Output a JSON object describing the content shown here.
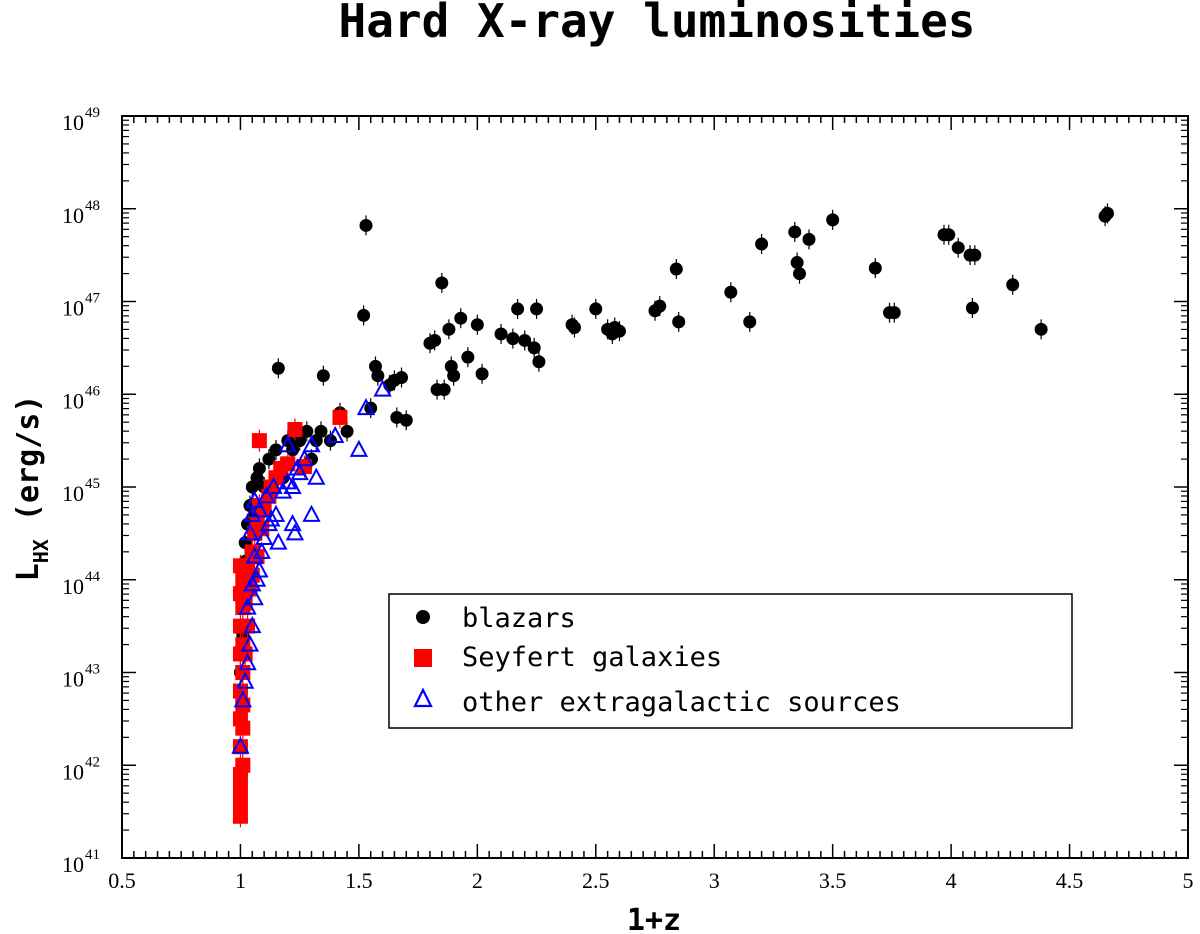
{
  "chart_data": {
    "type": "scatter",
    "title": "Hard X-ray luminosities",
    "xlabel": "1+z",
    "ylabel_main": "L",
    "ylabel_sub": "HX",
    "ylabel_unit": "(erg/s)",
    "xlim": [
      0.5,
      5
    ],
    "ylim": [
      41,
      49
    ],
    "y_scale": "log",
    "x_ticks": [
      0.5,
      1,
      1.5,
      2,
      2.5,
      3,
      3.5,
      4,
      4.5,
      5
    ],
    "x_tick_labels": [
      "0.5",
      "1",
      "1.5",
      "2",
      "2.5",
      "3",
      "3.5",
      "4",
      "4.5",
      "5"
    ],
    "y_ticks": [
      41,
      42,
      43,
      44,
      45,
      46,
      47,
      48,
      49
    ],
    "y_tick_base": "10",
    "y_tick_exponents": [
      "41",
      "42",
      "43",
      "44",
      "45",
      "46",
      "47",
      "48",
      "49"
    ],
    "grid": false,
    "legend_position": "lower-right",
    "series": [
      {
        "name": "blazars",
        "marker": "filled-circle",
        "color": "#000000",
        "points": [
          [
            1.0,
            43.0
          ],
          [
            1.01,
            43.4
          ],
          [
            1.01,
            43.8
          ],
          [
            1.02,
            44.2
          ],
          [
            1.02,
            44.4
          ],
          [
            1.03,
            44.6
          ],
          [
            1.04,
            44.8
          ],
          [
            1.05,
            45.0
          ],
          [
            1.06,
            44.7
          ],
          [
            1.07,
            45.1
          ],
          [
            1.08,
            45.2
          ],
          [
            1.1,
            45.0
          ],
          [
            1.12,
            45.3
          ],
          [
            1.15,
            45.4
          ],
          [
            1.16,
            46.28
          ],
          [
            1.18,
            45.1
          ],
          [
            1.2,
            45.5
          ],
          [
            1.22,
            45.4
          ],
          [
            1.25,
            45.5
          ],
          [
            1.28,
            45.6
          ],
          [
            1.3,
            45.3
          ],
          [
            1.32,
            45.5
          ],
          [
            1.34,
            45.6
          ],
          [
            1.35,
            46.2
          ],
          [
            1.38,
            45.5
          ],
          [
            1.42,
            45.8
          ],
          [
            1.45,
            45.6
          ],
          [
            1.52,
            46.85
          ],
          [
            1.53,
            47.82
          ],
          [
            1.55,
            45.85
          ],
          [
            1.57,
            46.3
          ],
          [
            1.58,
            46.2
          ],
          [
            1.63,
            46.1
          ],
          [
            1.65,
            46.15
          ],
          [
            1.66,
            45.75
          ],
          [
            1.68,
            46.18
          ],
          [
            1.7,
            45.72
          ],
          [
            1.8,
            46.55
          ],
          [
            1.82,
            46.58
          ],
          [
            1.83,
            46.05
          ],
          [
            1.85,
            47.2
          ],
          [
            1.86,
            46.05
          ],
          [
            1.88,
            46.7
          ],
          [
            1.89,
            46.3
          ],
          [
            1.9,
            46.2
          ],
          [
            1.93,
            46.82
          ],
          [
            1.96,
            46.4
          ],
          [
            2.0,
            46.75
          ],
          [
            2.02,
            46.22
          ],
          [
            2.1,
            46.65
          ],
          [
            2.15,
            46.6
          ],
          [
            2.17,
            46.92
          ],
          [
            2.2,
            46.58
          ],
          [
            2.24,
            46.5
          ],
          [
            2.25,
            46.92
          ],
          [
            2.26,
            46.35
          ],
          [
            2.4,
            46.75
          ],
          [
            2.41,
            46.72
          ],
          [
            2.5,
            46.92
          ],
          [
            2.55,
            46.7
          ],
          [
            2.57,
            46.65
          ],
          [
            2.58,
            46.72
          ],
          [
            2.6,
            46.68
          ],
          [
            2.75,
            46.9
          ],
          [
            2.77,
            46.95
          ],
          [
            2.84,
            47.35
          ],
          [
            2.85,
            46.78
          ],
          [
            3.07,
            47.1
          ],
          [
            3.15,
            46.78
          ],
          [
            3.2,
            47.62
          ],
          [
            3.34,
            47.75
          ],
          [
            3.35,
            47.42
          ],
          [
            3.36,
            47.3
          ],
          [
            3.4,
            47.67
          ],
          [
            3.5,
            47.88
          ],
          [
            3.68,
            47.36
          ],
          [
            3.74,
            46.88
          ],
          [
            3.76,
            46.88
          ],
          [
            3.97,
            47.72
          ],
          [
            3.99,
            47.72
          ],
          [
            4.03,
            47.58
          ],
          [
            4.08,
            47.5
          ],
          [
            4.1,
            47.5
          ],
          [
            4.09,
            46.93
          ],
          [
            4.26,
            47.18
          ],
          [
            4.38,
            46.7
          ],
          [
            4.65,
            47.92
          ],
          [
            4.66,
            47.95
          ]
        ]
      },
      {
        "name": "Seyfert galaxies",
        "marker": "filled-square",
        "color": "#ff0000",
        "points": [
          [
            1.0,
            41.45
          ],
          [
            1.0,
            41.6
          ],
          [
            1.0,
            41.75
          ],
          [
            1.0,
            41.9
          ],
          [
            1.01,
            42.0
          ],
          [
            1.0,
            42.2
          ],
          [
            1.01,
            42.4
          ],
          [
            1.0,
            42.5
          ],
          [
            1.01,
            42.65
          ],
          [
            1.0,
            42.8
          ],
          [
            1.01,
            43.0
          ],
          [
            1.0,
            43.2
          ],
          [
            1.01,
            43.3
          ],
          [
            1.0,
            43.5
          ],
          [
            1.01,
            43.7
          ],
          [
            1.0,
            43.85
          ],
          [
            1.01,
            44.0
          ],
          [
            1.0,
            44.15
          ],
          [
            1.02,
            43.2
          ],
          [
            1.03,
            43.5
          ],
          [
            1.02,
            43.75
          ],
          [
            1.04,
            43.9
          ],
          [
            1.03,
            44.1
          ],
          [
            1.05,
            44.3
          ],
          [
            1.06,
            44.5
          ],
          [
            1.07,
            44.6
          ],
          [
            1.08,
            44.8
          ],
          [
            1.09,
            44.55
          ],
          [
            1.1,
            44.75
          ],
          [
            1.12,
            44.9
          ],
          [
            1.13,
            45.0
          ],
          [
            1.15,
            45.1
          ],
          [
            1.17,
            45.2
          ],
          [
            1.2,
            45.25
          ],
          [
            1.08,
            45.5
          ],
          [
            1.23,
            45.62
          ],
          [
            1.27,
            45.22
          ],
          [
            1.42,
            45.75
          ],
          [
            1.05,
            44.05
          ],
          [
            1.07,
            44.25
          ]
        ]
      },
      {
        "name": "other extragalactic sources",
        "marker": "open-triangle",
        "color": "#0000ff",
        "points": [
          [
            1.0,
            42.2
          ],
          [
            1.01,
            42.7
          ],
          [
            1.02,
            42.9
          ],
          [
            1.03,
            43.1
          ],
          [
            1.04,
            43.3
          ],
          [
            1.05,
            43.5
          ],
          [
            1.03,
            43.7
          ],
          [
            1.06,
            43.8
          ],
          [
            1.05,
            43.95
          ],
          [
            1.07,
            44.0
          ],
          [
            1.08,
            44.1
          ],
          [
            1.06,
            44.25
          ],
          [
            1.09,
            44.3
          ],
          [
            1.1,
            44.45
          ],
          [
            1.04,
            44.5
          ],
          [
            1.05,
            44.7
          ],
          [
            1.06,
            44.85
          ],
          [
            1.08,
            44.75
          ],
          [
            1.12,
            44.6
          ],
          [
            1.15,
            44.7
          ],
          [
            1.18,
            44.95
          ],
          [
            1.2,
            45.05
          ],
          [
            1.22,
            45.0
          ],
          [
            1.25,
            45.15
          ],
          [
            1.2,
            45.45
          ],
          [
            1.24,
            45.2
          ],
          [
            1.27,
            45.3
          ],
          [
            1.3,
            45.45
          ],
          [
            1.32,
            45.1
          ],
          [
            1.3,
            44.7
          ],
          [
            1.23,
            44.5
          ],
          [
            1.22,
            44.6
          ],
          [
            1.4,
            45.55
          ],
          [
            1.5,
            45.4
          ],
          [
            1.53,
            45.85
          ],
          [
            1.6,
            46.05
          ],
          [
            1.13,
            44.65
          ],
          [
            1.16,
            44.4
          ],
          [
            1.11,
            44.9
          ],
          [
            1.14,
            45.0
          ]
        ]
      }
    ]
  }
}
